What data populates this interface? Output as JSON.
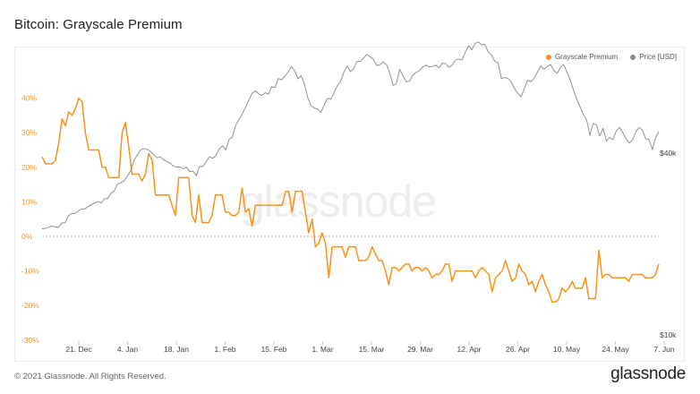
{
  "header": {
    "title": "Bitcoin: Grayscale Premium"
  },
  "legend": {
    "premium_label": "Grayscale Premium",
    "price_label": "Price [USD]"
  },
  "watermark": "glassnode",
  "footer": {
    "copyright": "© 2021 Glassnode. All Rights Reserved.",
    "logo_text": "glassnode"
  },
  "colors": {
    "premium": "#f7931a",
    "price": "#888888",
    "zero_line": "#999999"
  },
  "chart_data": {
    "type": "line",
    "title": "Bitcoin: Grayscale Premium",
    "x_ticks": [
      "21. Dec",
      "4. Jan",
      "18. Jan",
      "1. Feb",
      "15. Feb",
      "1. Mar",
      "15. Mar",
      "29. Mar",
      "12. Apr",
      "26. Apr",
      "10. May",
      "24. May",
      "7. Jun"
    ],
    "y_left_ticks": [
      "40%",
      "30%",
      "20%",
      "10%",
      "0%",
      "-10%",
      "-20%",
      "-30%"
    ],
    "y_left_values": [
      40,
      30,
      20,
      10,
      0,
      -10,
      -20,
      -30
    ],
    "y_left_range": [
      -30,
      40
    ],
    "y_right_ticks": [
      "$40k",
      "$10k"
    ],
    "legend_position": "top-right",
    "series": [
      {
        "name": "Grayscale Premium",
        "axis": "left",
        "values": [
          23,
          21,
          21,
          21,
          22,
          27,
          34,
          32,
          36,
          35,
          37,
          40,
          39,
          30,
          25,
          25,
          25,
          25,
          20,
          20,
          17,
          17,
          17,
          17,
          30,
          33,
          26,
          18,
          18,
          18,
          16,
          18,
          24,
          22,
          12,
          12,
          12,
          12,
          12,
          9,
          6,
          17,
          17,
          17,
          17,
          6,
          4,
          12,
          4,
          4,
          4,
          6,
          12,
          12,
          12,
          7,
          7,
          6,
          6,
          7,
          14,
          7,
          8,
          3,
          9,
          9,
          9,
          9,
          9,
          9,
          9,
          9,
          9,
          13,
          13,
          7,
          13,
          13,
          13,
          7,
          1,
          5,
          -3,
          -2,
          1,
          -2,
          -12,
          -3,
          -3,
          -3,
          -3,
          -6,
          -3,
          -3,
          -3,
          -7,
          -7,
          -7,
          -6,
          -3,
          -5,
          -7,
          -7,
          -10,
          -14,
          -9,
          -9,
          -10,
          -9,
          -8,
          -8,
          -10,
          -9,
          -9,
          -10,
          -9,
          -10,
          -12,
          -11,
          -11,
          -10,
          -8,
          -8,
          -13,
          -10,
          -10,
          -10,
          -10,
          -10,
          -10,
          -12,
          -10,
          -9,
          -10,
          -11,
          -16,
          -12,
          -11,
          -10,
          -7,
          -10,
          -13,
          -12,
          -8,
          -10,
          -11,
          -14,
          -13,
          -16,
          -13,
          -11,
          -14,
          -16,
          -19,
          -19,
          -18,
          -15,
          -16,
          -15,
          -13,
          -15,
          -15,
          -15,
          -12,
          -18,
          -18,
          -18,
          -4,
          -12,
          -11,
          -11,
          -12,
          -12,
          -12,
          -12,
          -12,
          -13,
          -11,
          -11,
          -11,
          -11,
          -12,
          -12,
          -12,
          -11,
          -8
        ]
      },
      {
        "name": "Price [USD]",
        "axis": "right",
        "values": [
          23.2,
          23.3,
          23.5,
          23.8,
          23.6,
          23.5,
          24.5,
          24.5,
          26,
          26.5,
          26.5,
          27,
          27.5,
          27.5,
          28,
          28.4,
          28.8,
          29.1,
          28.8,
          29.7,
          29.8,
          30.9,
          31.4,
          32.9,
          33.2,
          33.6,
          34.6,
          35.8,
          38,
          39.2,
          40.3,
          40.6,
          40.4,
          40,
          39.3,
          38.6,
          38.8,
          38.2,
          37.8,
          37.5,
          36.8,
          36.6,
          36.6,
          36.2,
          36.6,
          35.6,
          35.7,
          34.7,
          36.7,
          36.7,
          37.7,
          38.8,
          38.5,
          39.1,
          40.5,
          41.2,
          40.3,
          42.6,
          43.1,
          45.6,
          46.9,
          48.1,
          49.5,
          51,
          52.6,
          53.1,
          52.5,
          52.1,
          52.7,
          52.4,
          54,
          53.8,
          55.8,
          55.5,
          56.3,
          57.2,
          58.4,
          57.5,
          55.7,
          56.4,
          54.5,
          51.6,
          49.9,
          49.4,
          49.1,
          48.4,
          50.1,
          51.5,
          51.3,
          52.7,
          54.2,
          55.1,
          57.2,
          58.5,
          57.3,
          58,
          59.5,
          59.5,
          60.2,
          61,
          60.5,
          59.9,
          58.6,
          58.8,
          59.4,
          58.8,
          56.9,
          54.3,
          54.7,
          57.8,
          56.4,
          55.1,
          55.2,
          56.5,
          57.1,
          57.5,
          58.3,
          58.7,
          58.3,
          58.4,
          58.7,
          58.1,
          59.1,
          59,
          58.2,
          58.7,
          59.8,
          60,
          59.8,
          61.5,
          62.9,
          62,
          63.4,
          63.7,
          63.1,
          63.2,
          61.5,
          60.9,
          59.5,
          59.2,
          55.8,
          56,
          55.8,
          55.1,
          53.6,
          52.6,
          51.8,
          53.6,
          55.4,
          55.1,
          55.8,
          57.2,
          58.5,
          57.8,
          58.4,
          58.8,
          57.5,
          56.9,
          58.2,
          58.8,
          57.2,
          55.5,
          53.3,
          51.2,
          49.7,
          48,
          46.8,
          43.5,
          46.1,
          45.7,
          43.3,
          45,
          42.2,
          43,
          42.5,
          44.4,
          45.2,
          44.1,
          42.7,
          41.8,
          42.5,
          44.2,
          45.2,
          44.6,
          42.7,
          42.6,
          40.4,
          42.9,
          44.3
        ]
      }
    ]
  }
}
